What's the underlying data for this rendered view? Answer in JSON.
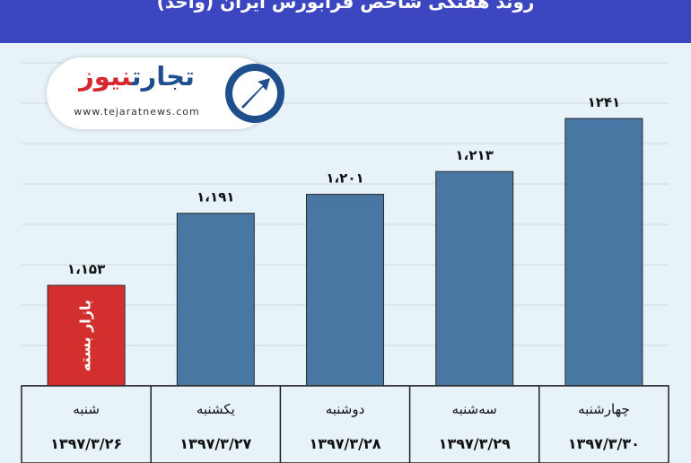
{
  "header": {
    "title": "روند هفتگی شاخص فرابورس ایران (واحد)"
  },
  "logo": {
    "name_part1": "تجارت",
    "name_part2": "نیوز",
    "url": "www.tejaratnews.com"
  },
  "colors": {
    "header_bg": "#3c46c0",
    "bar_blue": "#4877a3",
    "bar_red": "#d32f2f",
    "panel_bg": "#e7f2f9"
  },
  "chart_data": {
    "type": "bar",
    "categories": [
      "شنبه",
      "یکشنبه",
      "دوشنبه",
      "سه‌شنبه",
      "چهارشنبه"
    ],
    "dates": [
      "۱۳۹۷/۳/۲۶",
      "۱۳۹۷/۳/۲۷",
      "۱۳۹۷/۳/۲۸",
      "۱۳۹۷/۳/۲۹",
      "۱۳۹۷/۳/۳۰"
    ],
    "values": [
      1153,
      1191,
      1201,
      1213,
      1241
    ],
    "value_labels": [
      "۱،۱۵۳",
      "۱،۱۹۱",
      "۱،۲۰۱",
      "۱،۲۱۳",
      "۱۲۴۱"
    ],
    "bar_colors": [
      "#d32f2f",
      "#4877a3",
      "#4877a3",
      "#4877a3",
      "#4877a3"
    ],
    "annotations": [
      {
        "category": "شنبه",
        "text": "بازار بسته"
      }
    ],
    "ylim": [
      1100,
      1250
    ],
    "grid": true
  }
}
